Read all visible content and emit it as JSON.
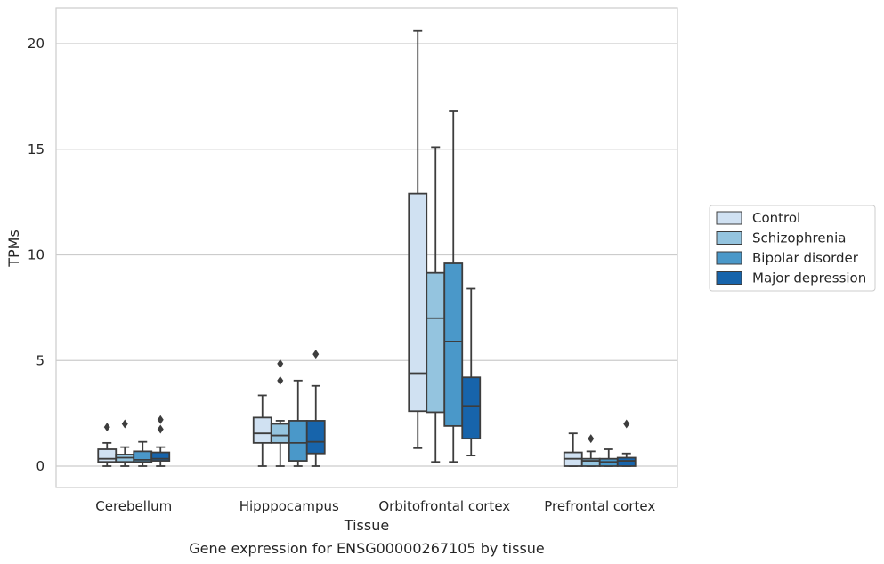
{
  "caption": "Gene expression for ENSG00000267105 by tissue",
  "chart_data": {
    "type": "boxplot",
    "xlabel": "Tissue",
    "ylabel": "TPMs",
    "ylim": [
      -1,
      21.7
    ],
    "yticks": [
      0,
      5,
      10,
      15,
      20
    ],
    "grid": "horizontal",
    "legend_placement": "right",
    "categories": [
      "Cerebellum",
      "Hipppocampus",
      "Orbitofrontal cortex",
      "Prefrontal cortex"
    ],
    "series": [
      {
        "name": "Control",
        "color": "#d0e1f2",
        "boxes": [
          {
            "whisker_low": 0.0,
            "q1": 0.2,
            "median": 0.35,
            "q3": 0.8,
            "whisker_high": 1.1,
            "outliers": [
              1.85
            ]
          },
          {
            "whisker_low": 0.0,
            "q1": 1.1,
            "median": 1.55,
            "q3": 2.3,
            "whisker_high": 3.35,
            "outliers": []
          },
          {
            "whisker_low": 0.85,
            "q1": 2.6,
            "median": 4.4,
            "q3": 12.9,
            "whisker_high": 20.6,
            "outliers": []
          },
          {
            "whisker_low": 0.0,
            "q1": 0.0,
            "median": 0.35,
            "q3": 0.65,
            "whisker_high": 1.55,
            "outliers": []
          }
        ]
      },
      {
        "name": "Schizophrenia",
        "color": "#94c4df",
        "boxes": [
          {
            "whisker_low": 0.0,
            "q1": 0.2,
            "median": 0.4,
            "q3": 0.55,
            "whisker_high": 0.9,
            "outliers": [
              2.0
            ]
          },
          {
            "whisker_low": 0.0,
            "q1": 1.1,
            "median": 1.45,
            "q3": 2.0,
            "whisker_high": 2.15,
            "outliers": [
              4.05,
              4.85
            ]
          },
          {
            "whisker_low": 0.2,
            "q1": 2.55,
            "median": 7.0,
            "q3": 9.15,
            "whisker_high": 15.1,
            "outliers": []
          },
          {
            "whisker_low": 0.0,
            "q1": 0.0,
            "median": 0.25,
            "q3": 0.35,
            "whisker_high": 0.7,
            "outliers": [
              1.3
            ]
          }
        ]
      },
      {
        "name": "Bipolar disorder",
        "color": "#4a98c9",
        "boxes": [
          {
            "whisker_low": 0.0,
            "q1": 0.2,
            "median": 0.3,
            "q3": 0.7,
            "whisker_high": 1.15,
            "outliers": []
          },
          {
            "whisker_low": 0.0,
            "q1": 0.25,
            "median": 1.1,
            "q3": 2.15,
            "whisker_high": 4.05,
            "outliers": []
          },
          {
            "whisker_low": 0.2,
            "q1": 1.9,
            "median": 5.9,
            "q3": 9.6,
            "whisker_high": 16.8,
            "outliers": []
          },
          {
            "whisker_low": 0.0,
            "q1": 0.0,
            "median": 0.2,
            "q3": 0.35,
            "whisker_high": 0.8,
            "outliers": []
          }
        ]
      },
      {
        "name": "Major depression",
        "color": "#1764ab",
        "boxes": [
          {
            "whisker_low": 0.0,
            "q1": 0.25,
            "median": 0.35,
            "q3": 0.65,
            "whisker_high": 0.9,
            "outliers": [
              1.75,
              2.2
            ]
          },
          {
            "whisker_low": 0.0,
            "q1": 0.6,
            "median": 1.15,
            "q3": 2.15,
            "whisker_high": 3.8,
            "outliers": [
              5.3
            ]
          },
          {
            "whisker_low": 0.5,
            "q1": 1.3,
            "median": 2.85,
            "q3": 4.2,
            "whisker_high": 8.4,
            "outliers": []
          },
          {
            "whisker_low": 0.0,
            "q1": 0.0,
            "median": 0.25,
            "q3": 0.4,
            "whisker_high": 0.6,
            "outliers": [
              2.0
            ]
          }
        ]
      }
    ]
  }
}
